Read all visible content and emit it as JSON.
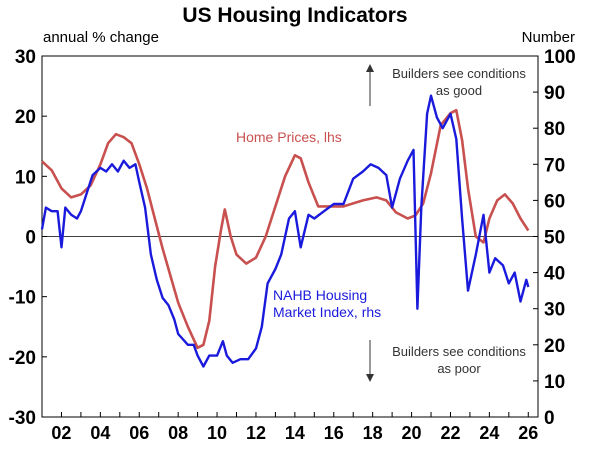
{
  "chart_data": {
    "type": "line",
    "title": "US Housing Indicators",
    "left_axis_label": "annual % change",
    "right_axis_label": "Number",
    "ylim_left": [
      -30,
      30
    ],
    "ylim_right": [
      0,
      100
    ],
    "left_ticks": [
      "30",
      "20",
      "10",
      "0",
      "-10",
      "-20",
      "-30"
    ],
    "right_ticks": [
      "100",
      "90",
      "80",
      "70",
      "60",
      "50",
      "40",
      "30",
      "20",
      "10",
      "0"
    ],
    "xlim": [
      2001,
      2026.5
    ],
    "x_ticks": [
      "02",
      "04",
      "06",
      "08",
      "10",
      "12",
      "14",
      "16",
      "18",
      "20",
      "22",
      "24",
      "26"
    ],
    "annotations": {
      "good_line1": "Builders see conditions",
      "good_line2": "as good",
      "poor_line1": "Builders see conditions",
      "poor_line2": "as poor"
    },
    "series": [
      {
        "name": "Home Prices, lhs",
        "axis": "left",
        "color": "#c8504f",
        "label_line1": "Home Prices, lhs",
        "points": [
          [
            2001.0,
            12.5
          ],
          [
            2001.5,
            11.0
          ],
          [
            2002.0,
            8.0
          ],
          [
            2002.5,
            6.5
          ],
          [
            2003.0,
            7.0
          ],
          [
            2003.5,
            8.5
          ],
          [
            2004.0,
            12.0
          ],
          [
            2004.4,
            15.5
          ],
          [
            2004.8,
            17.0
          ],
          [
            2005.2,
            16.5
          ],
          [
            2005.6,
            15.5
          ],
          [
            2006.0,
            12.0
          ],
          [
            2006.4,
            8.0
          ],
          [
            2006.8,
            3.0
          ],
          [
            2007.2,
            -2.0
          ],
          [
            2007.6,
            -6.5
          ],
          [
            2008.0,
            -11.0
          ],
          [
            2008.5,
            -15.0
          ],
          [
            2009.0,
            -18.5
          ],
          [
            2009.3,
            -18.0
          ],
          [
            2009.6,
            -14.0
          ],
          [
            2009.9,
            -5.0
          ],
          [
            2010.2,
            1.0
          ],
          [
            2010.4,
            4.5
          ],
          [
            2010.7,
            0.0
          ],
          [
            2011.0,
            -3.0
          ],
          [
            2011.5,
            -4.5
          ],
          [
            2012.0,
            -3.5
          ],
          [
            2012.5,
            0.0
          ],
          [
            2013.0,
            5.0
          ],
          [
            2013.5,
            10.0
          ],
          [
            2014.0,
            13.5
          ],
          [
            2014.3,
            13.0
          ],
          [
            2014.7,
            9.0
          ],
          [
            2015.2,
            5.0
          ],
          [
            2015.8,
            5.0
          ],
          [
            2016.5,
            5.0
          ],
          [
            2017.5,
            6.0
          ],
          [
            2018.2,
            6.5
          ],
          [
            2018.7,
            6.0
          ],
          [
            2019.2,
            4.0
          ],
          [
            2019.8,
            3.0
          ],
          [
            2020.2,
            3.5
          ],
          [
            2020.6,
            5.5
          ],
          [
            2021.0,
            10.5
          ],
          [
            2021.5,
            18.5
          ],
          [
            2022.0,
            20.5
          ],
          [
            2022.3,
            21.0
          ],
          [
            2022.6,
            16.0
          ],
          [
            2022.9,
            8.0
          ],
          [
            2023.3,
            0.0
          ],
          [
            2023.7,
            -1.0
          ],
          [
            2024.0,
            3.0
          ],
          [
            2024.4,
            6.0
          ],
          [
            2024.8,
            7.0
          ],
          [
            2025.2,
            5.5
          ],
          [
            2025.6,
            3.0
          ],
          [
            2026.0,
            1.0
          ]
        ]
      },
      {
        "name": "NAHB Housing Market Index, rhs",
        "axis": "right",
        "color": "#1a1adc",
        "label_line1": "NAHB Housing",
        "label_line2": "Market Index, rhs",
        "points": [
          [
            2001.0,
            52
          ],
          [
            2001.2,
            58
          ],
          [
            2001.5,
            57
          ],
          [
            2001.8,
            57
          ],
          [
            2002.0,
            47
          ],
          [
            2002.2,
            58
          ],
          [
            2002.5,
            56
          ],
          [
            2002.8,
            55
          ],
          [
            2003.0,
            57
          ],
          [
            2003.3,
            62
          ],
          [
            2003.6,
            67
          ],
          [
            2004.0,
            69
          ],
          [
            2004.3,
            68
          ],
          [
            2004.6,
            70
          ],
          [
            2004.9,
            68
          ],
          [
            2005.2,
            71
          ],
          [
            2005.5,
            69
          ],
          [
            2005.8,
            70
          ],
          [
            2006.0,
            65
          ],
          [
            2006.3,
            58
          ],
          [
            2006.6,
            45
          ],
          [
            2006.9,
            38
          ],
          [
            2007.2,
            33
          ],
          [
            2007.5,
            31
          ],
          [
            2007.8,
            27
          ],
          [
            2008.0,
            23
          ],
          [
            2008.5,
            20
          ],
          [
            2008.8,
            20
          ],
          [
            2009.0,
            17
          ],
          [
            2009.3,
            14
          ],
          [
            2009.6,
            17
          ],
          [
            2010.0,
            17
          ],
          [
            2010.3,
            21
          ],
          [
            2010.5,
            17
          ],
          [
            2010.8,
            15
          ],
          [
            2011.2,
            16
          ],
          [
            2011.6,
            16
          ],
          [
            2012.0,
            19
          ],
          [
            2012.3,
            25
          ],
          [
            2012.6,
            37
          ],
          [
            2013.0,
            41
          ],
          [
            2013.3,
            45
          ],
          [
            2013.7,
            55
          ],
          [
            2014.0,
            57
          ],
          [
            2014.3,
            47
          ],
          [
            2014.7,
            56
          ],
          [
            2015.0,
            55
          ],
          [
            2015.5,
            57
          ],
          [
            2016.0,
            59
          ],
          [
            2016.5,
            59
          ],
          [
            2017.0,
            66
          ],
          [
            2017.5,
            68
          ],
          [
            2017.9,
            70
          ],
          [
            2018.3,
            69
          ],
          [
            2018.7,
            67
          ],
          [
            2019.0,
            58
          ],
          [
            2019.4,
            66
          ],
          [
            2019.8,
            71
          ],
          [
            2020.1,
            74
          ],
          [
            2020.3,
            30
          ],
          [
            2020.5,
            58
          ],
          [
            2020.8,
            84
          ],
          [
            2021.0,
            89
          ],
          [
            2021.3,
            83
          ],
          [
            2021.6,
            80
          ],
          [
            2022.0,
            84
          ],
          [
            2022.3,
            77
          ],
          [
            2022.6,
            55
          ],
          [
            2022.9,
            35
          ],
          [
            2023.3,
            45
          ],
          [
            2023.7,
            56
          ],
          [
            2024.0,
            40
          ],
          [
            2024.3,
            44
          ],
          [
            2024.7,
            42
          ],
          [
            2025.0,
            37
          ],
          [
            2025.3,
            40
          ],
          [
            2025.6,
            32
          ],
          [
            2025.9,
            38
          ],
          [
            2026.0,
            36
          ]
        ]
      }
    ]
  }
}
